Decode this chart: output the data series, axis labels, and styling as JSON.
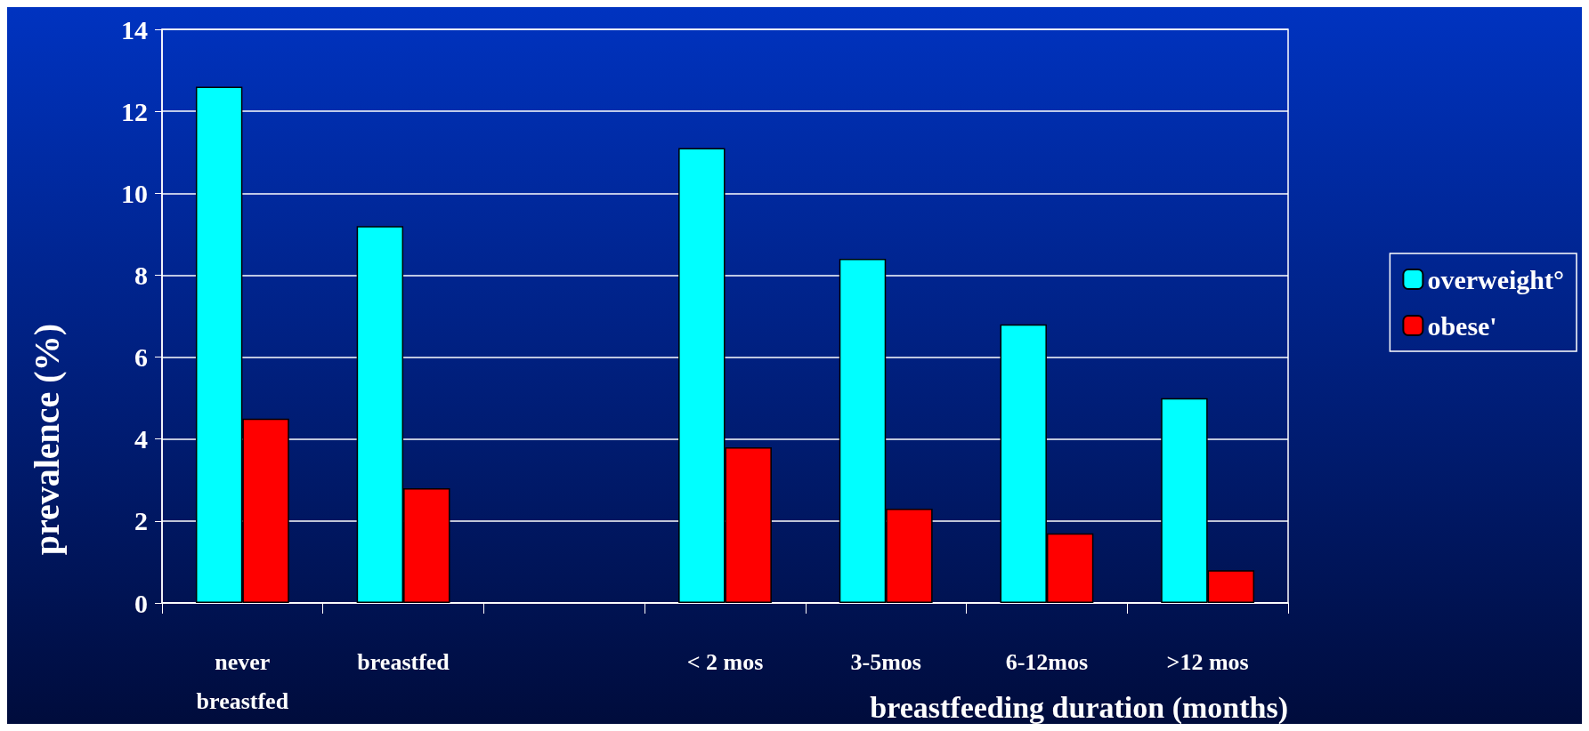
{
  "chart_data": {
    "type": "bar",
    "xlabel": "breastfeeding duration (months)",
    "ylabel": "prevalence (%)",
    "categories": [
      "never\nbreastfed",
      "breastfed",
      null,
      "< 2 mos",
      "3-5mos",
      "6-12mos",
      ">12 mos"
    ],
    "series": [
      {
        "name": "overweight°",
        "color": "#00ffff",
        "values": [
          12.6,
          9.2,
          null,
          11.1,
          8.4,
          6.8,
          5.0
        ]
      },
      {
        "name": "obese'",
        "color": "#ff0000",
        "values": [
          4.5,
          2.8,
          null,
          3.8,
          2.3,
          1.7,
          0.8
        ]
      }
    ],
    "ylim": [
      0,
      14
    ],
    "yticks": [
      0,
      2,
      4,
      6,
      8,
      10,
      12,
      14
    ],
    "grid": "y",
    "legend": "right"
  }
}
